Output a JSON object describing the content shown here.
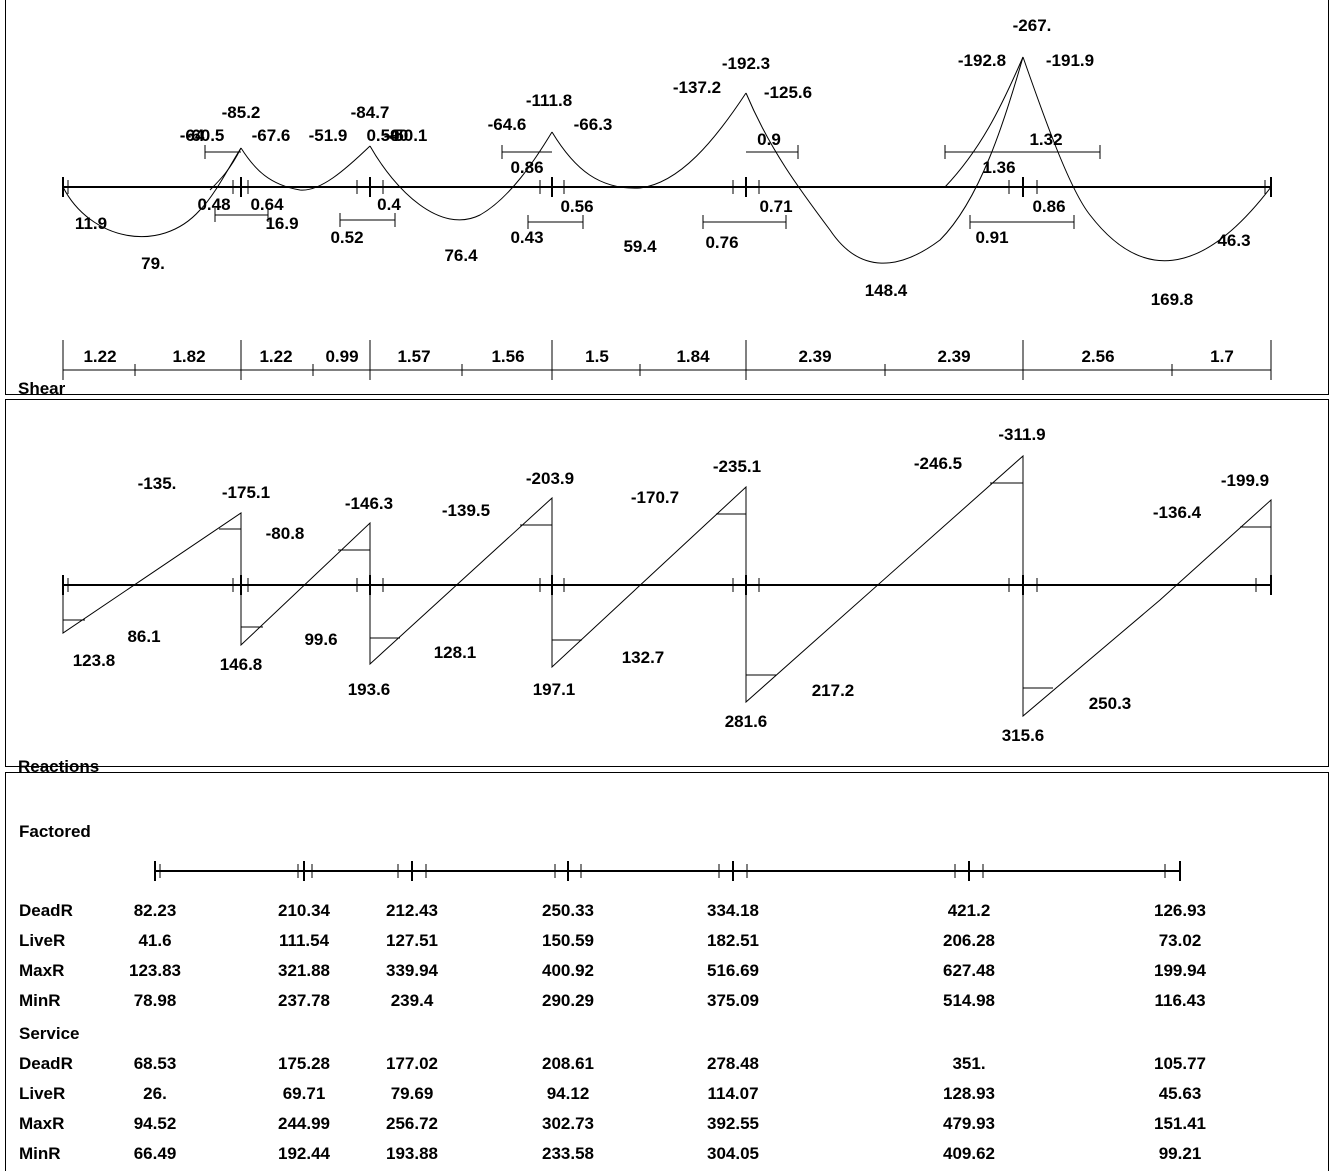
{
  "sections": {
    "shear": "Shear",
    "reactions": "Reactions"
  },
  "moment_labels": [
    "11.9",
    "79.",
    "-60.5",
    "-64",
    "-85.2",
    "-67.6",
    "-51.9",
    "-84.7",
    "0.59",
    "-50.1",
    "-40",
    "0.48",
    "0.64",
    "16.9",
    "0.52",
    "0.4",
    "76.4",
    "-64.6",
    "-111.8",
    "-66.3",
    "0.86",
    "0.43",
    "0.56",
    "59.4",
    "-137.2",
    "-192.3",
    "-125.6",
    "0.9",
    "0.76",
    "0.71",
    "148.4",
    "-267.",
    "-192.8",
    "-191.9",
    "1.32",
    "1.36",
    "0.91",
    "0.86",
    "169.8",
    "46.3"
  ],
  "span_lengths": [
    "1.22",
    "1.82",
    "1.22",
    "0.99",
    "1.57",
    "1.56",
    "1.5",
    "1.84",
    "2.39",
    "2.39",
    "2.56",
    "1.7"
  ],
  "shear_labels": [
    "-135.",
    "123.8",
    "86.1",
    "-175.1",
    "-80.8",
    "146.8",
    "99.6",
    "-146.3",
    "193.6",
    "128.1",
    "-139.5",
    "-203.9",
    "197.1",
    "132.7",
    "-170.7",
    "-235.1",
    "281.6",
    "217.2",
    "-246.5",
    "-311.9",
    "315.6",
    "250.3",
    "-136.4",
    "-199.9"
  ],
  "reactions": {
    "factored_title": "Factored",
    "service_title": "Service",
    "factored": [
      {
        "label": "DeadR",
        "values": [
          "82.23",
          "210.34",
          "212.43",
          "250.33",
          "334.18",
          "421.2",
          "126.93"
        ]
      },
      {
        "label": "LiveR",
        "values": [
          "41.6",
          "111.54",
          "127.51",
          "150.59",
          "182.51",
          "206.28",
          "73.02"
        ]
      },
      {
        "label": "MaxR",
        "values": [
          "123.83",
          "321.88",
          "339.94",
          "400.92",
          "516.69",
          "627.48",
          "199.94"
        ]
      },
      {
        "label": "MinR",
        "values": [
          "78.98",
          "237.78",
          "239.4",
          "290.29",
          "375.09",
          "514.98",
          "116.43"
        ]
      }
    ],
    "service": [
      {
        "label": "DeadR",
        "values": [
          "68.53",
          "175.28",
          "177.02",
          "208.61",
          "278.48",
          "351.",
          "105.77"
        ]
      },
      {
        "label": "LiveR",
        "values": [
          "26.",
          "69.71",
          "79.69",
          "94.12",
          "114.07",
          "128.93",
          "45.63"
        ]
      },
      {
        "label": "MaxR",
        "values": [
          "94.52",
          "244.99",
          "256.72",
          "302.73",
          "392.55",
          "479.93",
          "151.41"
        ]
      },
      {
        "label": "MinR",
        "values": [
          "66.49",
          "192.44",
          "193.88",
          "233.58",
          "304.05",
          "409.62",
          "99.21"
        ]
      }
    ]
  }
}
